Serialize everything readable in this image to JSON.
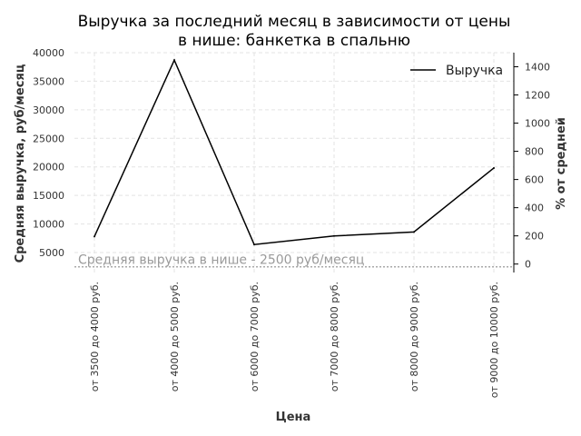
{
  "chart_data": {
    "type": "line",
    "title_lines": [
      "Выручка за последний месяц в зависимости от цены",
      "в нише: банкетка в спальню"
    ],
    "xlabel": "Цена",
    "ylabel": "Средняя выручка, руб/месяц",
    "y2label": "% от средней",
    "categories": [
      "от 3500 до 4000 руб.",
      "от 4000 до 5000 руб.",
      "от 6000 до 7000 руб.",
      "от 7000 до 8000 руб.",
      "от 8000 до 9000 руб.",
      "от 9000 до 10000 руб."
    ],
    "series": [
      {
        "name": "Выручка",
        "values": [
          7800,
          38700,
          6400,
          7900,
          8600,
          19800
        ],
        "color": "#000000"
      }
    ],
    "ylim": [
      1500,
      40000
    ],
    "yticks": [
      5000,
      10000,
      15000,
      20000,
      25000,
      30000,
      35000,
      40000
    ],
    "y2lim": [
      -60,
      1500
    ],
    "y2ticks": [
      0,
      200,
      400,
      600,
      800,
      1000,
      1200,
      1400
    ],
    "reference_line": {
      "value": 2500,
      "label": "Средняя выручка в нише - 2500 руб/месяц",
      "color": "#aaaaaa"
    },
    "grid": true,
    "legend_position": "top-right"
  }
}
